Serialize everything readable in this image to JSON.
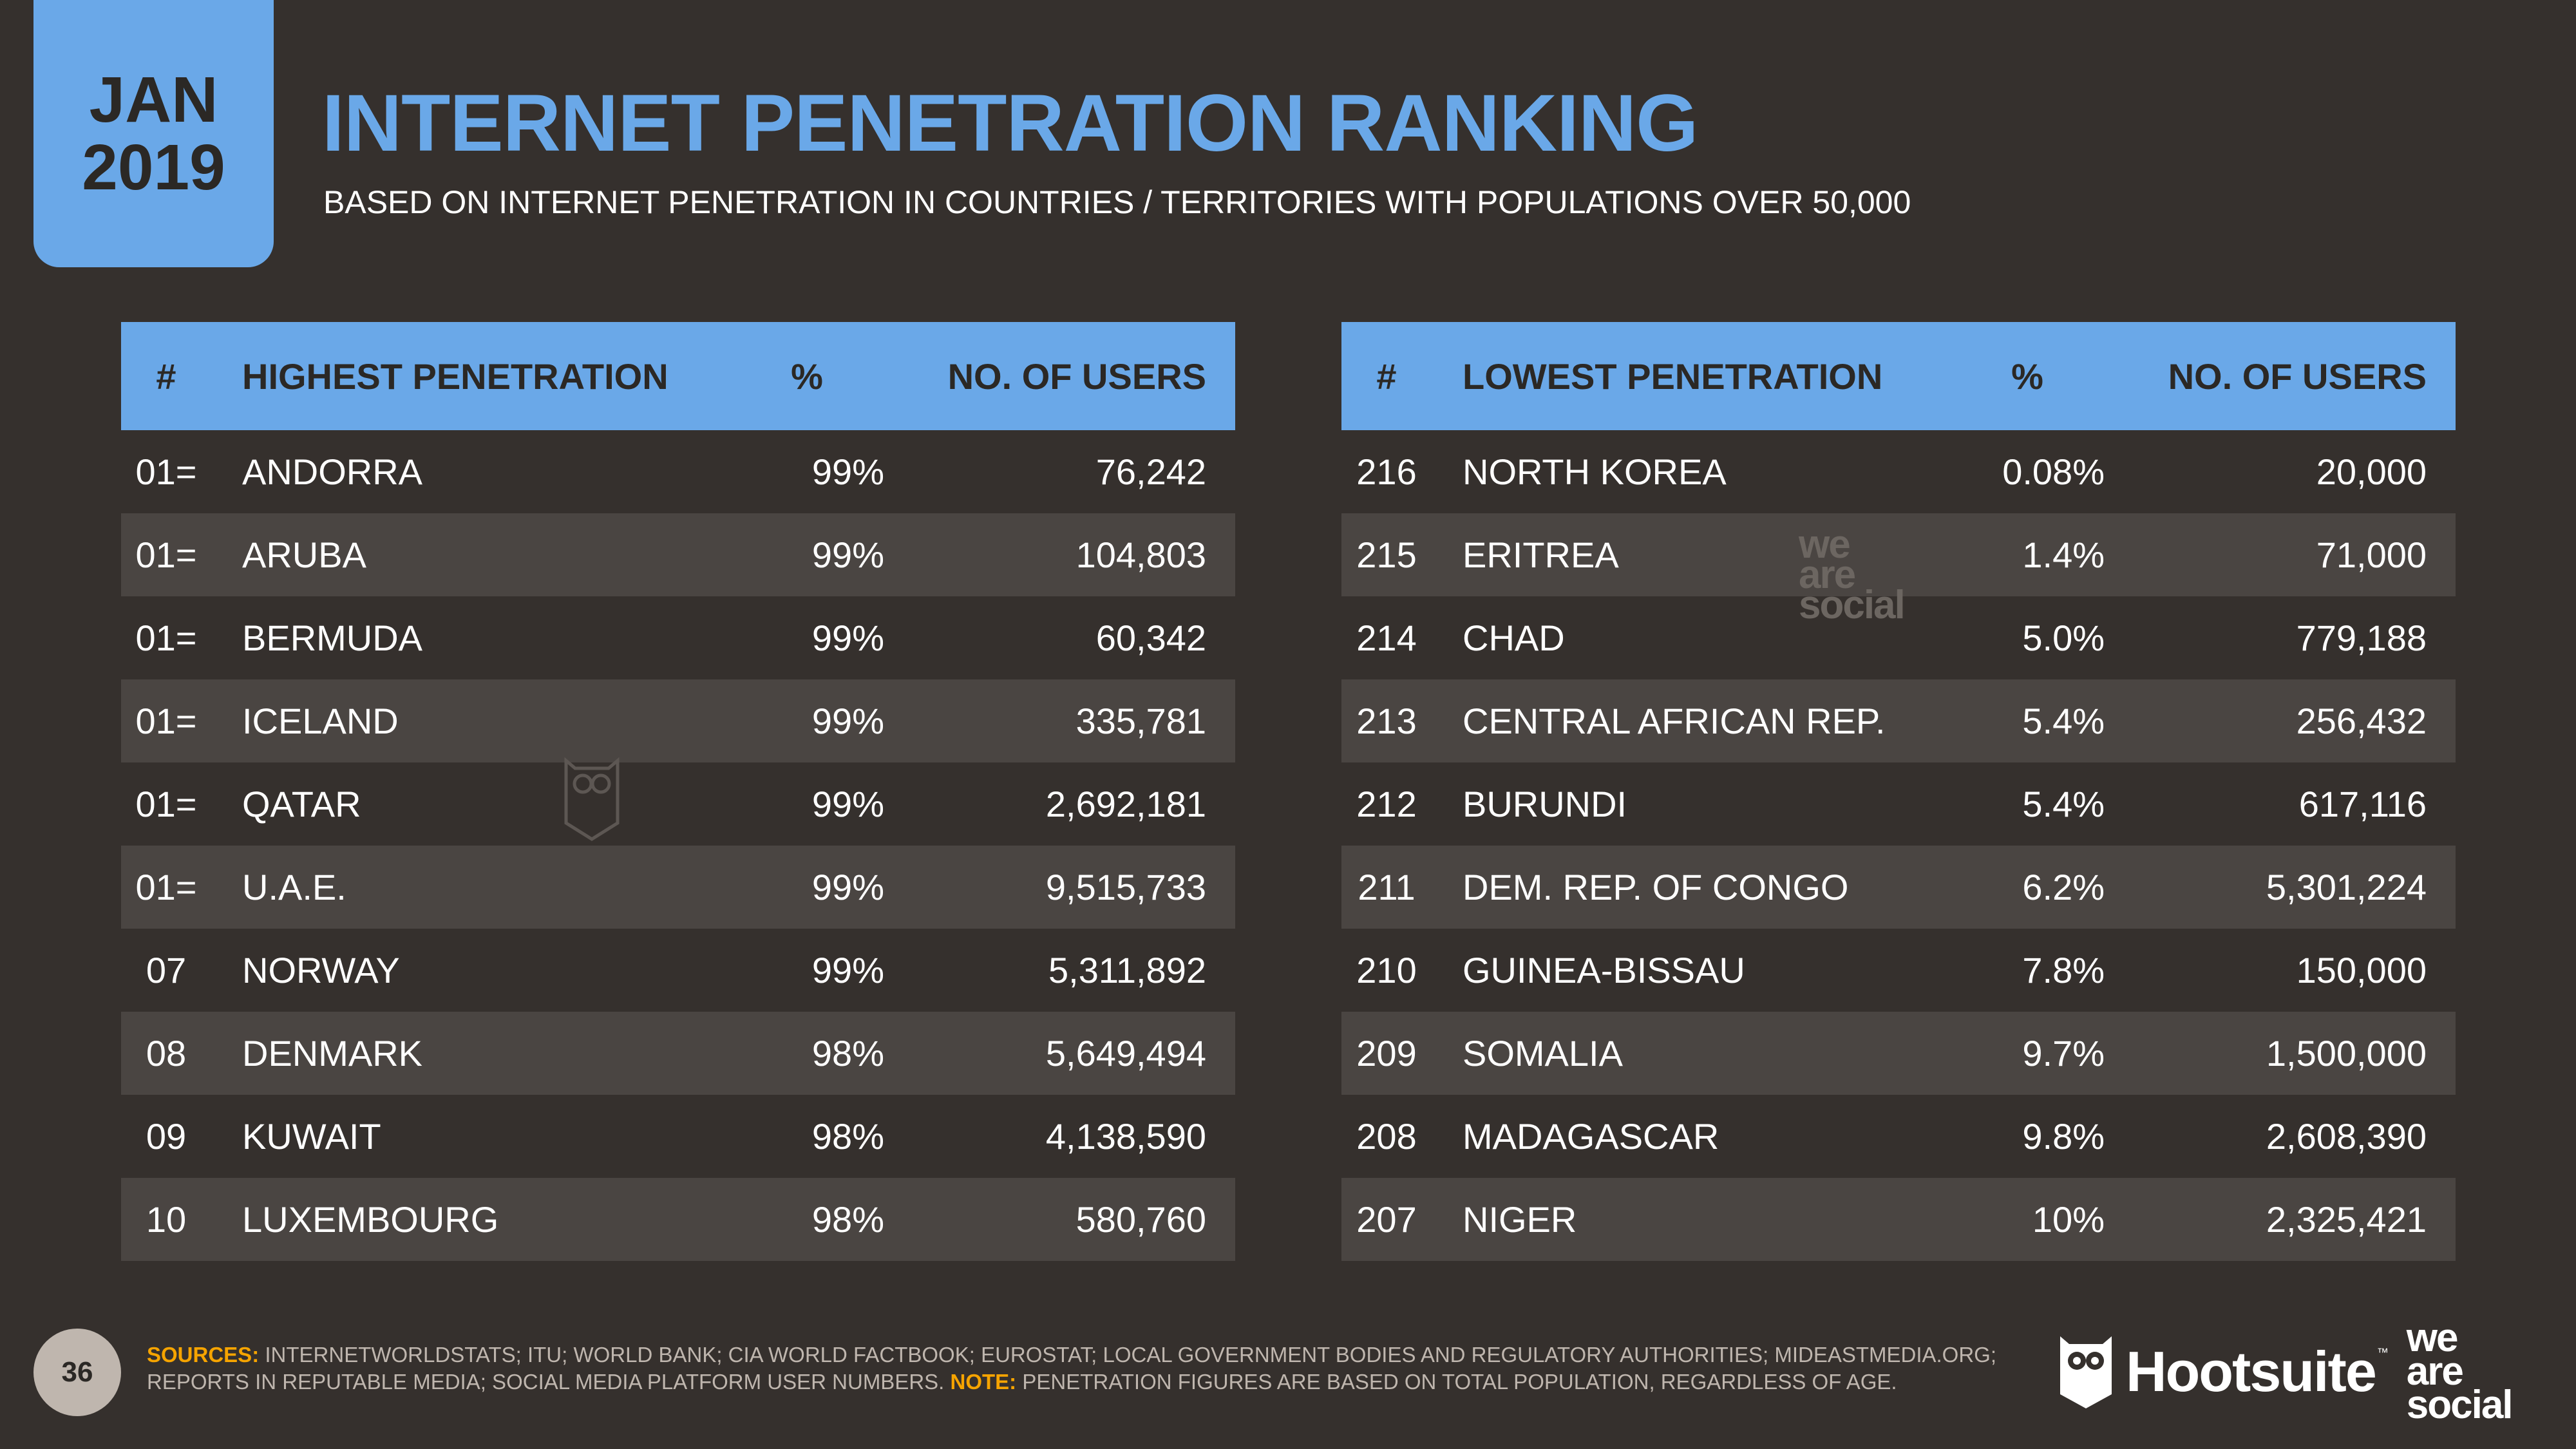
{
  "badge": {
    "month": "JAN",
    "year": "2019"
  },
  "title": "INTERNET PENETRATION RANKING",
  "subtitle": "BASED ON INTERNET PENETRATION IN COUNTRIES / TERRITORIES WITH POPULATIONS OVER 50,000",
  "highest": {
    "headers": {
      "rank": "#",
      "name": "HIGHEST PENETRATION",
      "pct": "%",
      "users": "NO. OF USERS"
    },
    "rows": [
      {
        "rank": "01=",
        "name": "ANDORRA",
        "pct": "99%",
        "users": "76,242"
      },
      {
        "rank": "01=",
        "name": "ARUBA",
        "pct": "99%",
        "users": "104,803"
      },
      {
        "rank": "01=",
        "name": "BERMUDA",
        "pct": "99%",
        "users": "60,342"
      },
      {
        "rank": "01=",
        "name": "ICELAND",
        "pct": "99%",
        "users": "335,781"
      },
      {
        "rank": "01=",
        "name": "QATAR",
        "pct": "99%",
        "users": "2,692,181"
      },
      {
        "rank": "01=",
        "name": "U.A.E.",
        "pct": "99%",
        "users": "9,515,733"
      },
      {
        "rank": "07",
        "name": "NORWAY",
        "pct": "99%",
        "users": "5,311,892"
      },
      {
        "rank": "08",
        "name": "DENMARK",
        "pct": "98%",
        "users": "5,649,494"
      },
      {
        "rank": "09",
        "name": "KUWAIT",
        "pct": "98%",
        "users": "4,138,590"
      },
      {
        "rank": "10",
        "name": "LUXEMBOURG",
        "pct": "98%",
        "users": "580,760"
      }
    ]
  },
  "lowest": {
    "headers": {
      "rank": "#",
      "name": "LOWEST PENETRATION",
      "pct": "%",
      "users": "NO. OF USERS"
    },
    "rows": [
      {
        "rank": "216",
        "name": "NORTH KOREA",
        "pct": "0.08%",
        "users": "20,000"
      },
      {
        "rank": "215",
        "name": "ERITREA",
        "pct": "1.4%",
        "users": "71,000"
      },
      {
        "rank": "214",
        "name": "CHAD",
        "pct": "5.0%",
        "users": "779,188"
      },
      {
        "rank": "213",
        "name": "CENTRAL AFRICAN REP.",
        "pct": "5.4%",
        "users": "256,432"
      },
      {
        "rank": "212",
        "name": "BURUNDI",
        "pct": "5.4%",
        "users": "617,116"
      },
      {
        "rank": "211",
        "name": "DEM. REP. OF CONGO",
        "pct": "6.2%",
        "users": "5,301,224"
      },
      {
        "rank": "210",
        "name": "GUINEA-BISSAU",
        "pct": "7.8%",
        "users": "150,000"
      },
      {
        "rank": "209",
        "name": "SOMALIA",
        "pct": "9.7%",
        "users": "1,500,000"
      },
      {
        "rank": "208",
        "name": "MADAGASCAR",
        "pct": "9.8%",
        "users": "2,608,390"
      },
      {
        "rank": "207",
        "name": "NIGER",
        "pct": "10%",
        "users": "2,325,421"
      }
    ]
  },
  "footer": {
    "page_number": "36",
    "sources_label": "SOURCES:",
    "sources_text": "INTERNETWORLDSTATS; ITU; WORLD BANK; CIA WORLD FACTBOOK; EUROSTAT; LOCAL GOVERNMENT BODIES AND REGULATORY AUTHORITIES; MIDEASTMEDIA.ORG; REPORTS IN REPUTABLE MEDIA; SOCIAL MEDIA PLATFORM USER NUMBERS.",
    "note_label": "NOTE:",
    "note_text": "PENETRATION FIGURES ARE BASED ON TOTAL POPULATION, REGARDLESS OF AGE."
  },
  "brand": {
    "hootsuite": "Hootsuite",
    "tm": "™",
    "we": "we",
    "are": "are",
    "social": "social"
  },
  "watermark": {
    "we": "we",
    "are": "are",
    "social": "social"
  },
  "colors": {
    "background": "#35302d",
    "accent": "#6aa8e8",
    "row_alt": "#4a4542",
    "note": "#f6a400"
  }
}
